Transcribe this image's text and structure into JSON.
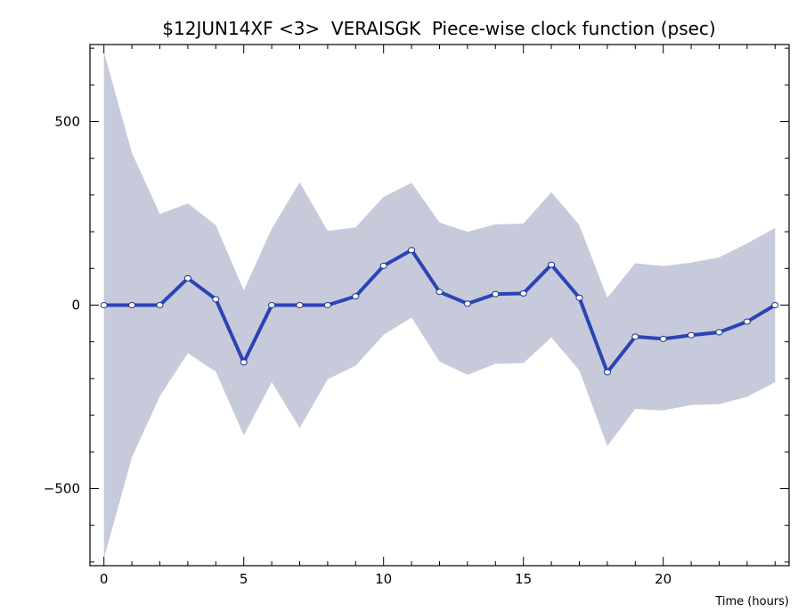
{
  "chart_data": {
    "type": "line",
    "title": "$12JUN14XF <3>  VERAISGK  Piece-wise clock function (psec)",
    "xlabel": "Time (hours)",
    "ylabel": "",
    "xlim": [
      -0.5,
      24.5
    ],
    "ylim": [
      -710,
      710
    ],
    "x_ticks": [
      0,
      5,
      10,
      15,
      20
    ],
    "y_ticks": [
      -500,
      0,
      500
    ],
    "x_minor_step": 1,
    "y_minor_step": 100,
    "grid": false,
    "colors": {
      "line": "#2a44b8",
      "band": "#c7cadb",
      "marker_fill": "#ffffff",
      "axis": "#000000"
    },
    "series": [
      {
        "x": [
          0,
          1,
          2,
          3,
          4,
          5,
          6,
          7,
          8,
          9,
          10,
          11,
          12,
          13,
          14,
          15,
          16,
          17,
          18,
          19,
          20,
          21,
          22,
          23,
          24
        ],
        "values": [
          0,
          0,
          0,
          73,
          16,
          -156,
          0,
          0,
          0,
          24,
          107,
          150,
          36,
          4,
          30,
          32,
          110,
          20,
          -183,
          -86,
          -92,
          -82,
          -74,
          -45,
          0
        ],
        "band_upper": [
          690,
          415,
          248,
          277,
          218,
          40,
          208,
          335,
          202,
          212,
          295,
          333,
          225,
          200,
          220,
          222,
          308,
          218,
          20,
          114,
          106,
          116,
          130,
          168,
          210
        ],
        "band_lower": [
          -690,
          -415,
          -248,
          -131,
          -181,
          -355,
          -210,
          -335,
          -202,
          -165,
          -81,
          -34,
          -154,
          -190,
          -160,
          -158,
          -88,
          -178,
          -384,
          -283,
          -287,
          -272,
          -270,
          -250,
          -210
        ]
      }
    ]
  }
}
